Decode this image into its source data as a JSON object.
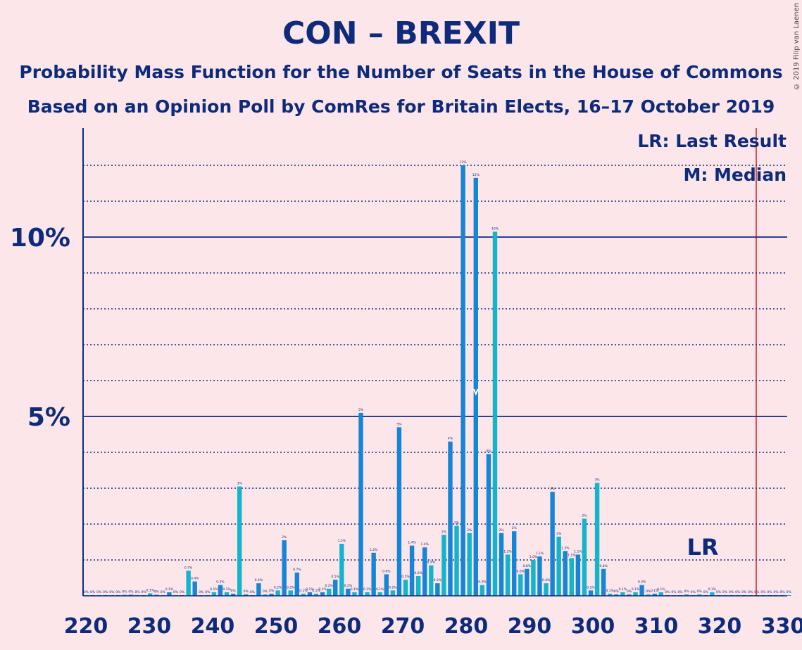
{
  "header": {
    "title": "CON – BREXIT",
    "subtitle1": "Probability Mass Function for the Number of Seats in the House of Commons",
    "subtitle2": "Based on an Opinion Poll by ComRes for Britain Elects, 16–17 October 2019"
  },
  "copyright": "© 2019 Filip van Laenen",
  "legend": {
    "lr": "LR: Last Result",
    "median": "M: Median"
  },
  "chart_data": {
    "type": "bar",
    "title": "CON – BREXIT",
    "x_ticks": [
      "220",
      "230",
      "240",
      "250",
      "260",
      "270",
      "280",
      "290",
      "300",
      "310",
      "320",
      "330"
    ],
    "y_ticks": [
      "5%",
      "10%"
    ],
    "xlim": [
      219,
      330
    ],
    "ylim": [
      0,
      12.9
    ],
    "grid": "dotted at every 1%, solid at 5% and 10%",
    "last_result_seats": 326,
    "last_result_line_color": "#cc0000",
    "last_result_label": "LR",
    "median_seats": 281,
    "median_label": "M",
    "colors": {
      "cyan": "#13b5cc",
      "blue": "#1685d6",
      "axis": "#0d2b7a",
      "background": "#fde6ea"
    },
    "seats": [
      220,
      221,
      222,
      223,
      224,
      225,
      226,
      227,
      228,
      229,
      230,
      231,
      232,
      233,
      234,
      235,
      236,
      237,
      238,
      239,
      240,
      241,
      242,
      243,
      244,
      245,
      246,
      247,
      248,
      249,
      250,
      251,
      252,
      253,
      254,
      255,
      256,
      257,
      258,
      259,
      260,
      261,
      262,
      263,
      264,
      265,
      266,
      267,
      268,
      269,
      270,
      271,
      272,
      273,
      274,
      275,
      276,
      277,
      278,
      279,
      280,
      281,
      282,
      283,
      284,
      285,
      286,
      287,
      288,
      289,
      290,
      291,
      292,
      293,
      294,
      295,
      296,
      297,
      298,
      299,
      300,
      301,
      302,
      303,
      304,
      305,
      306,
      307,
      308,
      309,
      310,
      311,
      312,
      313,
      314,
      315,
      316,
      317,
      318,
      319,
      320,
      321,
      322,
      323,
      324,
      325,
      326,
      327,
      328,
      329,
      330
    ],
    "values": [
      0.02,
      0.02,
      0.02,
      0.02,
      0.02,
      0.02,
      0.03,
      0.03,
      0.02,
      0.02,
      0.07,
      0.03,
      0.02,
      0.1,
      0.02,
      0.02,
      0.7,
      0.4,
      0.02,
      0.02,
      0.1,
      0.3,
      0.1,
      0.06,
      3.05,
      0.04,
      0.02,
      0.35,
      0.04,
      0.06,
      0.15,
      1.55,
      0.15,
      0.65,
      0.06,
      0.1,
      0.06,
      0.1,
      0.2,
      0.45,
      1.45,
      0.2,
      0.1,
      5.1,
      0.1,
      1.2,
      0.1,
      0.6,
      0.15,
      4.7,
      0.45,
      1.4,
      0.55,
      1.35,
      0.85,
      0.35,
      1.7,
      4.3,
      1.95,
      12.0,
      1.75,
      11.65,
      0.3,
      3.95,
      10.15,
      1.75,
      1.15,
      1.8,
      0.6,
      0.75,
      1.0,
      1.1,
      0.35,
      2.9,
      1.65,
      1.25,
      1.05,
      1.15,
      2.15,
      0.15,
      3.15,
      0.75,
      0.06,
      0.04,
      0.1,
      0.04,
      0.1,
      0.3,
      0.04,
      0.06,
      0.1,
      0.02,
      0.02,
      0.02,
      0.04,
      0.02,
      0.04,
      0.02,
      0.1,
      0.02,
      0.02,
      0.02,
      0.02,
      0.02,
      0.02,
      0.02,
      0.02,
      0.02,
      0.02,
      0.02,
      0.02
    ],
    "value_labels": [
      "0%",
      "0%",
      "0%",
      "0%",
      "0%",
      "0%",
      "0%",
      "0%",
      "0%",
      "0%",
      "0.1%",
      "0%",
      "0%",
      "0.1%",
      "0%",
      "0%",
      "0.7%",
      "0.4%",
      "0%",
      "0%",
      "0.1%",
      "0.3%",
      "0.1%",
      "0%",
      "3%",
      "0%",
      "0%",
      "0.4%",
      "0%",
      "0%",
      "0.2%",
      "2%",
      "0.2%",
      "0.7%",
      "0.1%",
      "0.1%",
      "0.1%",
      "0.1%",
      "0.2%",
      "0.5%",
      "1.5%",
      "0.2%",
      "0.1%",
      "5%",
      "0.1%",
      "1.2%",
      "0.1%",
      "0.6%",
      "0.2%",
      "5%",
      "0.5%",
      "1.4%",
      "0.6%",
      "1.4%",
      "0.9%",
      "0.3%",
      "2%",
      "4%",
      "2%",
      "12%",
      "2%",
      "12%",
      "0.3%",
      "4%",
      "10%",
      "2%",
      "1.2%",
      "2%",
      "0.6%",
      "0.8%",
      "1.0%",
      "1.1%",
      "0.4%",
      "3%",
      "2%",
      "1.3%",
      "1.1%",
      "1.1%",
      "2%",
      "0.2%",
      "3%",
      "0.8%",
      "0.1%",
      "0%",
      "0.1%",
      "0%",
      "0.1%",
      "0.3%",
      "0%",
      "0.1%",
      "0.1%",
      "0%",
      "0%",
      "0%",
      "0%",
      "0%",
      "0%",
      "0%",
      "0.1%",
      "0%",
      "0%",
      "0%",
      "0%",
      "0%",
      "0%",
      "0%",
      "0%",
      "0%",
      "0%",
      "0%",
      "0%"
    ]
  }
}
